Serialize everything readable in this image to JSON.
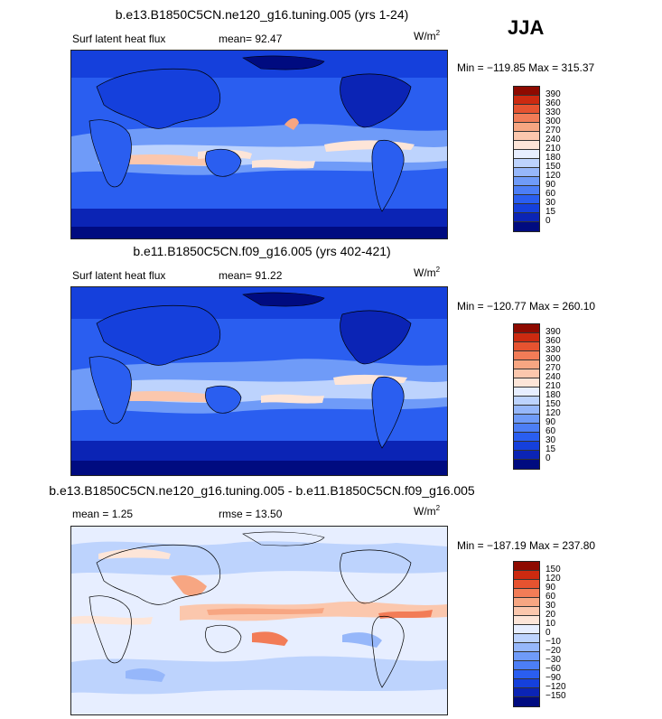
{
  "season": "JJA",
  "panels": [
    {
      "title": "b.e13.B1850C5CN.ne120_g16.tuning.005 (yrs 1-24)",
      "left_label": "Surf latent heat flux",
      "stat_text": "mean=  92.47",
      "units_base": "W/m",
      "units_exp": "2",
      "minmax": "Min = −119.85 Max = 315.37",
      "colorbar_labels": [
        "390",
        "360",
        "330",
        "300",
        "270",
        "240",
        "210",
        "180",
        "150",
        "120",
        "90",
        "60",
        "30",
        "15",
        "0"
      ]
    },
    {
      "title": "b.e11.B1850C5CN.f09_g16.005 (yrs 402-421)",
      "left_label": "Surf latent heat flux",
      "stat_text": "mean=  91.22",
      "units_base": "W/m",
      "units_exp": "2",
      "minmax": "Min = −120.77 Max = 260.10",
      "colorbar_labels": [
        "390",
        "360",
        "330",
        "300",
        "270",
        "240",
        "210",
        "180",
        "150",
        "120",
        "90",
        "60",
        "30",
        "15",
        "0"
      ]
    },
    {
      "title": "b.e13.B1850C5CN.ne120_g16.tuning.005 - b.e11.B1850C5CN.f09_g16.005",
      "left_label": "mean =   1.25",
      "stat_text": "rmse =  13.50",
      "units_base": "W/m",
      "units_exp": "2",
      "minmax": "Min = −187.19 Max = 237.80",
      "colorbar_labels": [
        "150",
        "120",
        "90",
        "60",
        "30",
        "20",
        "10",
        "0",
        "−10",
        "−20",
        "−30",
        "−60",
        "−90",
        "−120",
        "−150"
      ]
    }
  ],
  "colors": {
    "seq": [
      "#000b80",
      "#0b24b5",
      "#1540dc",
      "#2a5ef0",
      "#4c7ef6",
      "#6f9bf8",
      "#96b7fa",
      "#bdd3fd",
      "#e7eeff",
      "#fde5d8",
      "#fbc7ad",
      "#f7a682",
      "#f27c57",
      "#e65330",
      "#cc2a10",
      "#8e0a00"
    ],
    "div": [
      "#000b80",
      "#0b24b5",
      "#1540dc",
      "#2a5ef0",
      "#4c7ef6",
      "#6f9bf8",
      "#96b7fa",
      "#bdd3fd",
      "#e7eeff",
      "#fde5d8",
      "#fbc7ad",
      "#f7a682",
      "#f27c57",
      "#e65330",
      "#cc2a10",
      "#8e0a00"
    ]
  }
}
